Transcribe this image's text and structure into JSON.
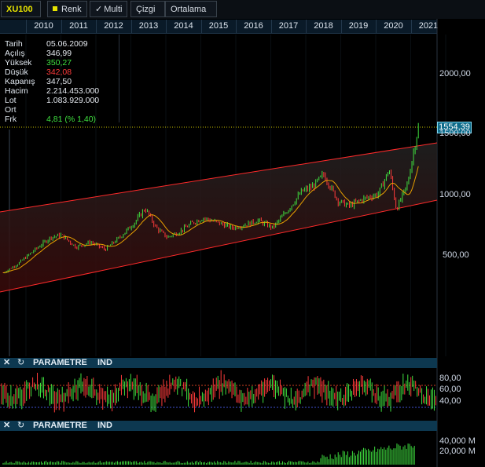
{
  "toolbar": {
    "symbol": "XU100",
    "renk_label": "Renk",
    "multi_label": "Multi",
    "cizgi_label": "Çizgi",
    "ortalama_label": "Ortalama"
  },
  "years": [
    "2010",
    "2011",
    "2012",
    "2013",
    "2014",
    "2015",
    "2016",
    "2017",
    "2018",
    "2019",
    "2020",
    "2021"
  ],
  "info": [
    {
      "key": "Tarih",
      "value": "05.06.2009",
      "tone": ""
    },
    {
      "key": "Açılış",
      "value": "346,99",
      "tone": ""
    },
    {
      "key": "Yüksek",
      "value": "350,27",
      "tone": "up"
    },
    {
      "key": "Düşük",
      "value": "342,08",
      "tone": "down"
    },
    {
      "key": "Kapanış",
      "value": "347,50",
      "tone": ""
    },
    {
      "key": "Hacim",
      "value": "2.214.453.000",
      "tone": ""
    },
    {
      "key": "Lot",
      "value": "1.083.929.000",
      "tone": ""
    },
    {
      "key": "Ort",
      "value": "",
      "tone": ""
    },
    {
      "key": "Frk",
      "value": "4,81 (% 1,40)",
      "tone": "up"
    }
  ],
  "price_axis": [
    "2000,00",
    "1500,00",
    "1000,00",
    "500,00"
  ],
  "last_price": "1554,39",
  "panels": [
    {
      "close": "✕",
      "refresh": "↻",
      "title": "PARAMETRE",
      "ind": "IND",
      "axis": [
        "80,00",
        "60,00",
        "40,00"
      ]
    },
    {
      "close": "✕",
      "refresh": "↻",
      "title": "PARAMETRE",
      "ind": "IND",
      "axis": [
        "40,000 M",
        "20,000 M"
      ]
    }
  ],
  "colors": {
    "up": "#3fe03f",
    "down": "#ff3b3b",
    "channel": "#ff2a2a",
    "ma": "#e8a000",
    "volume": "#3fe03f"
  },
  "chart_data": {
    "type": "line",
    "x": [
      2009.4,
      2009.8,
      2010.2,
      2010.7,
      2011.0,
      2011.4,
      2011.8,
      2012.2,
      2012.6,
      2013.0,
      2013.3,
      2013.6,
      2013.9,
      2014.2,
      2014.6,
      2014.9,
      2015.3,
      2015.7,
      2016.0,
      2016.4,
      2016.8,
      2017.2,
      2017.6,
      2017.9,
      2018.2,
      2018.6,
      2018.9,
      2019.3,
      2019.7,
      2020.0,
      2020.2,
      2020.5,
      2020.8
    ],
    "y": [
      347,
      420,
      520,
      640,
      660,
      560,
      600,
      540,
      640,
      760,
      880,
      720,
      640,
      680,
      760,
      800,
      760,
      720,
      740,
      780,
      720,
      860,
      1020,
      1060,
      1160,
      940,
      900,
      960,
      1000,
      1200,
      870,
      1080,
      1554
    ],
    "ylim": [
      0,
      2200
    ],
    "xlim": [
      2009.4,
      2021.4
    ],
    "series": [
      {
        "values": [
          347,
          420,
          520,
          640,
          660,
          560,
          600,
          540,
          640,
          760,
          880,
          720,
          640,
          680,
          760,
          800,
          760,
          720,
          740,
          780,
          720,
          860,
          1020,
          1060,
          1160,
          940,
          900,
          960,
          1000,
          1200,
          870,
          1080,
          1554
        ]
      }
    ]
  }
}
